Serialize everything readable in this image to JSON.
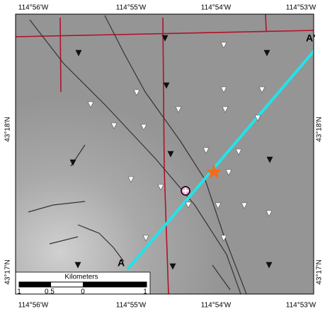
{
  "map": {
    "top_labels": [
      "114°56'W",
      "114°55'W",
      "114°54'W",
      "114°53'W"
    ],
    "bottom_labels": [
      "114°56'W",
      "114°55'W",
      "114°54'W",
      "114°53'W"
    ],
    "left_labels": [
      "43°18'N",
      "43°17'N"
    ],
    "right_labels": [
      "43°18'N",
      "43°17'N"
    ],
    "profile": {
      "start": "A",
      "end": "A'"
    },
    "scale_bar": {
      "title": "Kilometers",
      "labels": [
        "1",
        "0.5",
        "0",
        "1"
      ]
    }
  }
}
